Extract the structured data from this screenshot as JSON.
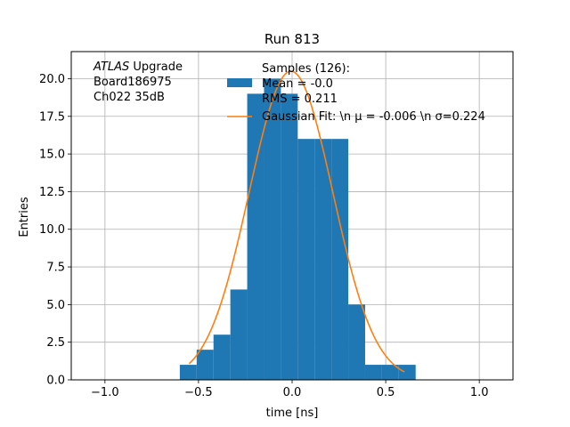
{
  "chart_data": {
    "type": "bar",
    "title": "Run 813",
    "xlabel": "time [ns]",
    "ylabel": "Entries",
    "xlim": [
      -1.18,
      1.18
    ],
    "ylim": [
      0,
      21.8
    ],
    "grid": true,
    "x_ticks": [
      -1.0,
      -0.5,
      0.0,
      0.5,
      1.0
    ],
    "x_tick_labels": [
      "−1.0",
      "−0.5",
      "0.0",
      "0.5",
      "1.0"
    ],
    "y_ticks": [
      0,
      2.5,
      5,
      7.5,
      10,
      12.5,
      15,
      17.5,
      20
    ],
    "y_tick_labels": [
      "0.0",
      "2.5",
      "5.0",
      "7.5",
      "10.0",
      "12.5",
      "15.0",
      "17.5",
      "20.0"
    ],
    "histogram": {
      "bin_edges": [
        -0.6,
        -0.51,
        -0.42,
        -0.33,
        -0.24,
        -0.15,
        -0.06,
        0.03,
        0.12,
        0.21,
        0.3,
        0.39,
        0.48,
        0.57,
        0.66
      ],
      "counts": [
        1,
        2,
        3,
        6,
        19,
        20,
        19,
        16,
        16,
        16,
        5,
        1,
        1,
        1
      ],
      "color": "#1f77b4"
    },
    "fit": {
      "amplitude": 20.5,
      "mean": -0.006,
      "sigma": 0.224,
      "x_range": [
        -0.55,
        0.6
      ],
      "color": "#ff7f0e"
    },
    "annotation_lines": [
      "ATLAS Upgrade",
      " Board186975",
      " Ch022 35dB"
    ],
    "annotation_italic": "ATLAS",
    "legend": {
      "placement": "top-right",
      "entries": [
        {
          "lines": [
            "Samples (126):",
            " Mean = -0.0",
            " RMS = 0.211"
          ],
          "kind": "patch",
          "color": "#1f77b4"
        },
        {
          "lines": [
            "Gaussian Fit: \\n μ = -0.006 \\n σ=0.224"
          ],
          "kind": "line",
          "color": "#ff7f0e"
        }
      ]
    }
  }
}
